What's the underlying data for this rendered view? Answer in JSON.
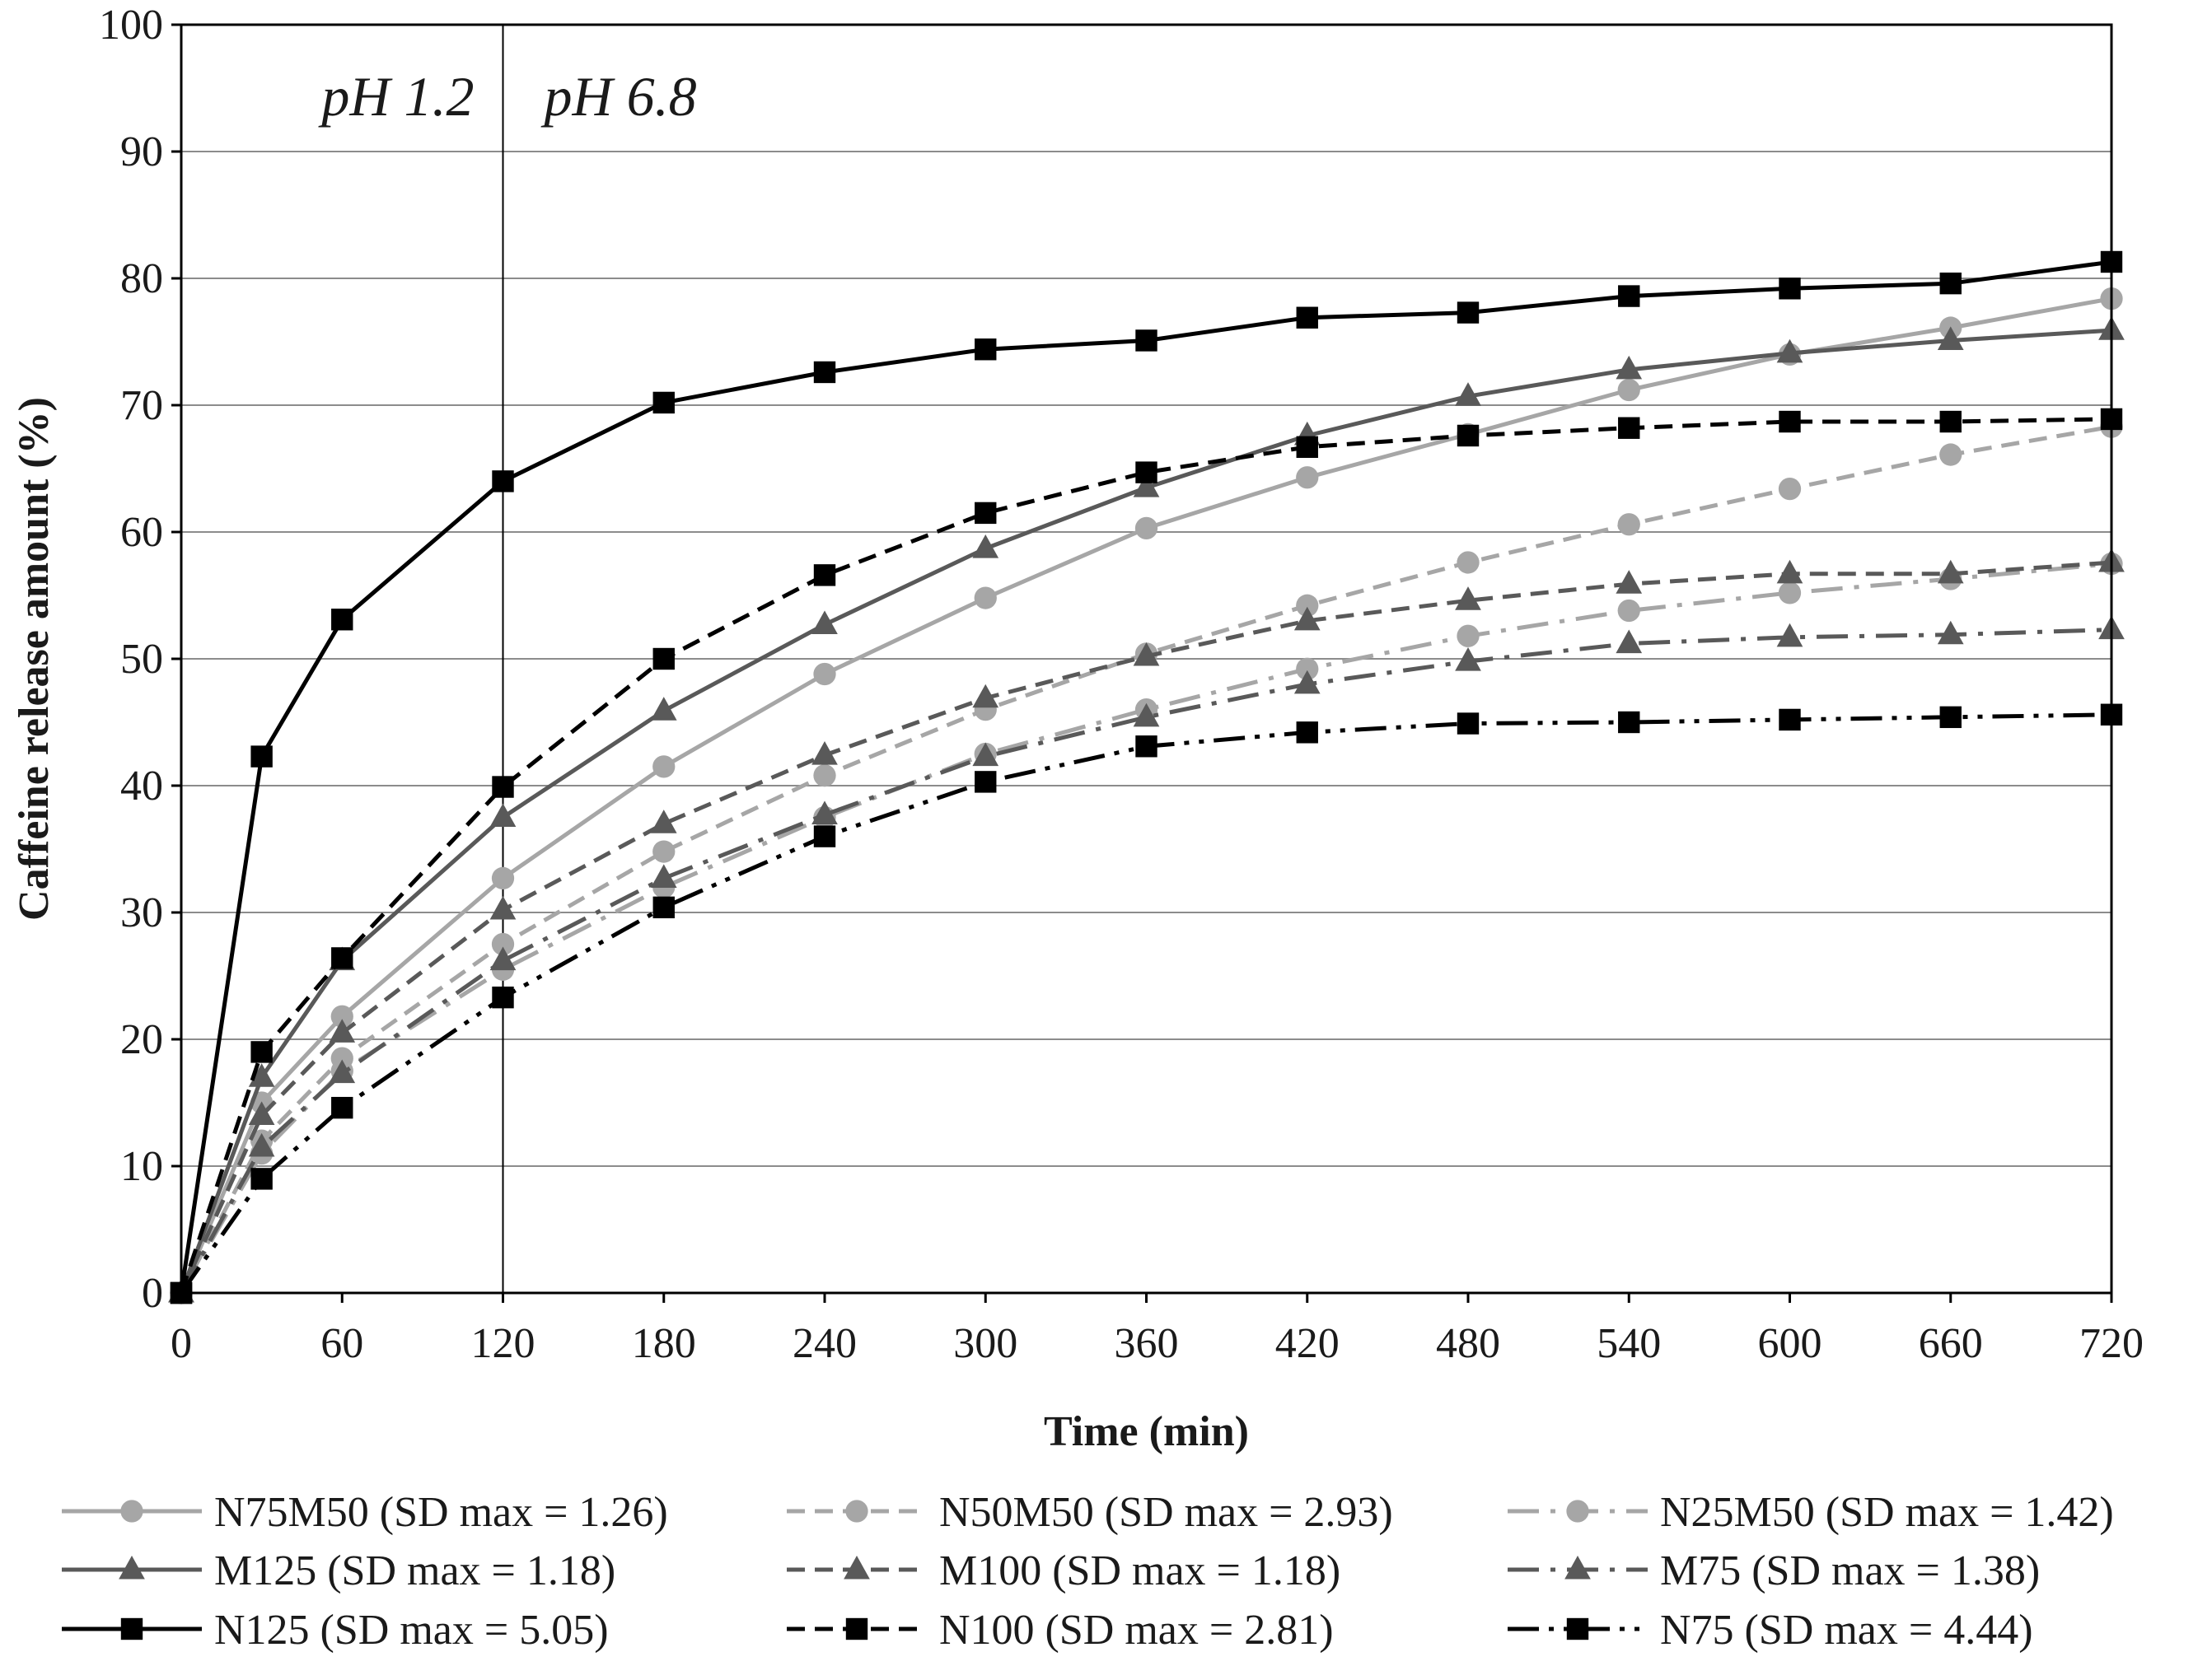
{
  "chart_data": {
    "type": "line",
    "title": "",
    "xlabel": "Time (min)",
    "ylabel": "Caffeine release amount (%)",
    "xlim": [
      0,
      720
    ],
    "ylim": [
      0,
      100
    ],
    "xticks": [
      "0",
      "60",
      "120",
      "180",
      "240",
      "300",
      "360",
      "420",
      "480",
      "540",
      "600",
      "660",
      "720"
    ],
    "yticks": [
      "0",
      "10",
      "20",
      "30",
      "40",
      "50",
      "60",
      "70",
      "80",
      "90",
      "100"
    ],
    "grid": "horizontal",
    "legend_position": "bottom",
    "annotations": {
      "divider_x": 120,
      "left_region_label": "pH 1.2",
      "right_region_label": "pH 6.8"
    },
    "x": [
      0,
      30,
      60,
      120,
      180,
      240,
      300,
      360,
      420,
      480,
      540,
      600,
      660,
      720
    ],
    "series": [
      {
        "name": "N75M50",
        "legend_label": "N75M50  (SD max = 1.26)",
        "color": "#a6a6a6",
        "dash": "solid",
        "marker": "circle",
        "values": [
          0,
          15,
          21.8,
          32.7,
          41.5,
          48.8,
          54.8,
          60.3,
          64.3,
          67.7,
          71.2,
          74,
          76.1,
          78.4
        ]
      },
      {
        "name": "N50M50",
        "legend_label": "N50M50 (SD max = 2.93)",
        "color": "#a6a6a6",
        "dash": "dash",
        "marker": "circle",
        "values": [
          0,
          12,
          18.5,
          27.5,
          34.8,
          40.8,
          46,
          50.4,
          54.2,
          57.6,
          60.6,
          63.4,
          66.1,
          68.3
        ]
      },
      {
        "name": "N25M50",
        "legend_label": "N25M50 (SD max = 1.42)",
        "color": "#a6a6a6",
        "dash": "longdashdot",
        "marker": "circle",
        "values": [
          0,
          11,
          17.5,
          25.5,
          32,
          37.5,
          42.5,
          46,
          49.2,
          51.8,
          53.8,
          55.2,
          56.3,
          57.5
        ]
      },
      {
        "name": "M125",
        "legend_label": "M125 (SD max = 1.18)",
        "color": "#595959",
        "dash": "solid",
        "marker": "triangle",
        "values": [
          0,
          17,
          26.2,
          37.5,
          45.9,
          52.7,
          58.7,
          63.5,
          67.6,
          70.7,
          72.8,
          74.1,
          75.1,
          75.9
        ]
      },
      {
        "name": "M100",
        "legend_label": "M100 (SD max = 1.18)",
        "color": "#595959",
        "dash": "dash",
        "marker": "triangle",
        "values": [
          0,
          14,
          20.5,
          30.2,
          37,
          42.4,
          46.9,
          50.2,
          53,
          54.6,
          55.9,
          56.7,
          56.7,
          57.6
        ]
      },
      {
        "name": "M75",
        "legend_label": "M75 (SD max = 1.38)",
        "color": "#595959",
        "dash": "longdashdot",
        "marker": "triangle",
        "values": [
          0,
          11.5,
          17.3,
          26.2,
          32.7,
          37.7,
          42.3,
          45.4,
          48,
          49.8,
          51.2,
          51.7,
          51.9,
          52.3
        ]
      },
      {
        "name": "N125",
        "legend_label": "N125 (SD max = 5.05)",
        "color": "#000000",
        "dash": "solid",
        "marker": "square",
        "values": [
          0,
          42.3,
          53.1,
          64,
          70.2,
          72.6,
          74.4,
          75.1,
          76.9,
          77.3,
          78.6,
          79.2,
          79.6,
          81.3
        ]
      },
      {
        "name": "N100",
        "legend_label": "N100 (SD max = 2.81)",
        "color": "#000000",
        "dash": "dash",
        "marker": "square",
        "values": [
          0,
          19,
          26.4,
          39.9,
          50,
          56.6,
          61.5,
          64.7,
          66.7,
          67.6,
          68.2,
          68.7,
          68.7,
          68.9
        ]
      },
      {
        "name": "N75",
        "legend_label": "N75 (SD max = 4.44)",
        "color": "#000000",
        "dash": "longdashdotdot",
        "marker": "square",
        "values": [
          0,
          9,
          14.6,
          23.3,
          30.4,
          36,
          40.3,
          43.1,
          44.2,
          44.9,
          45,
          45.2,
          45.4,
          45.6
        ]
      }
    ]
  }
}
